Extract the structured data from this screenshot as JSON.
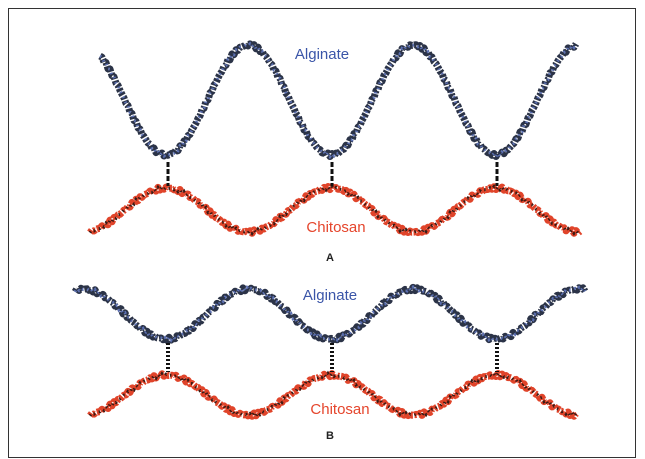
{
  "panels": [
    {
      "label": "A",
      "upper_chain": "Alginate",
      "lower_chain": "Chitosan"
    },
    {
      "label": "B",
      "upper_chain": "Alginate",
      "lower_chain": "Chitosan"
    }
  ]
}
